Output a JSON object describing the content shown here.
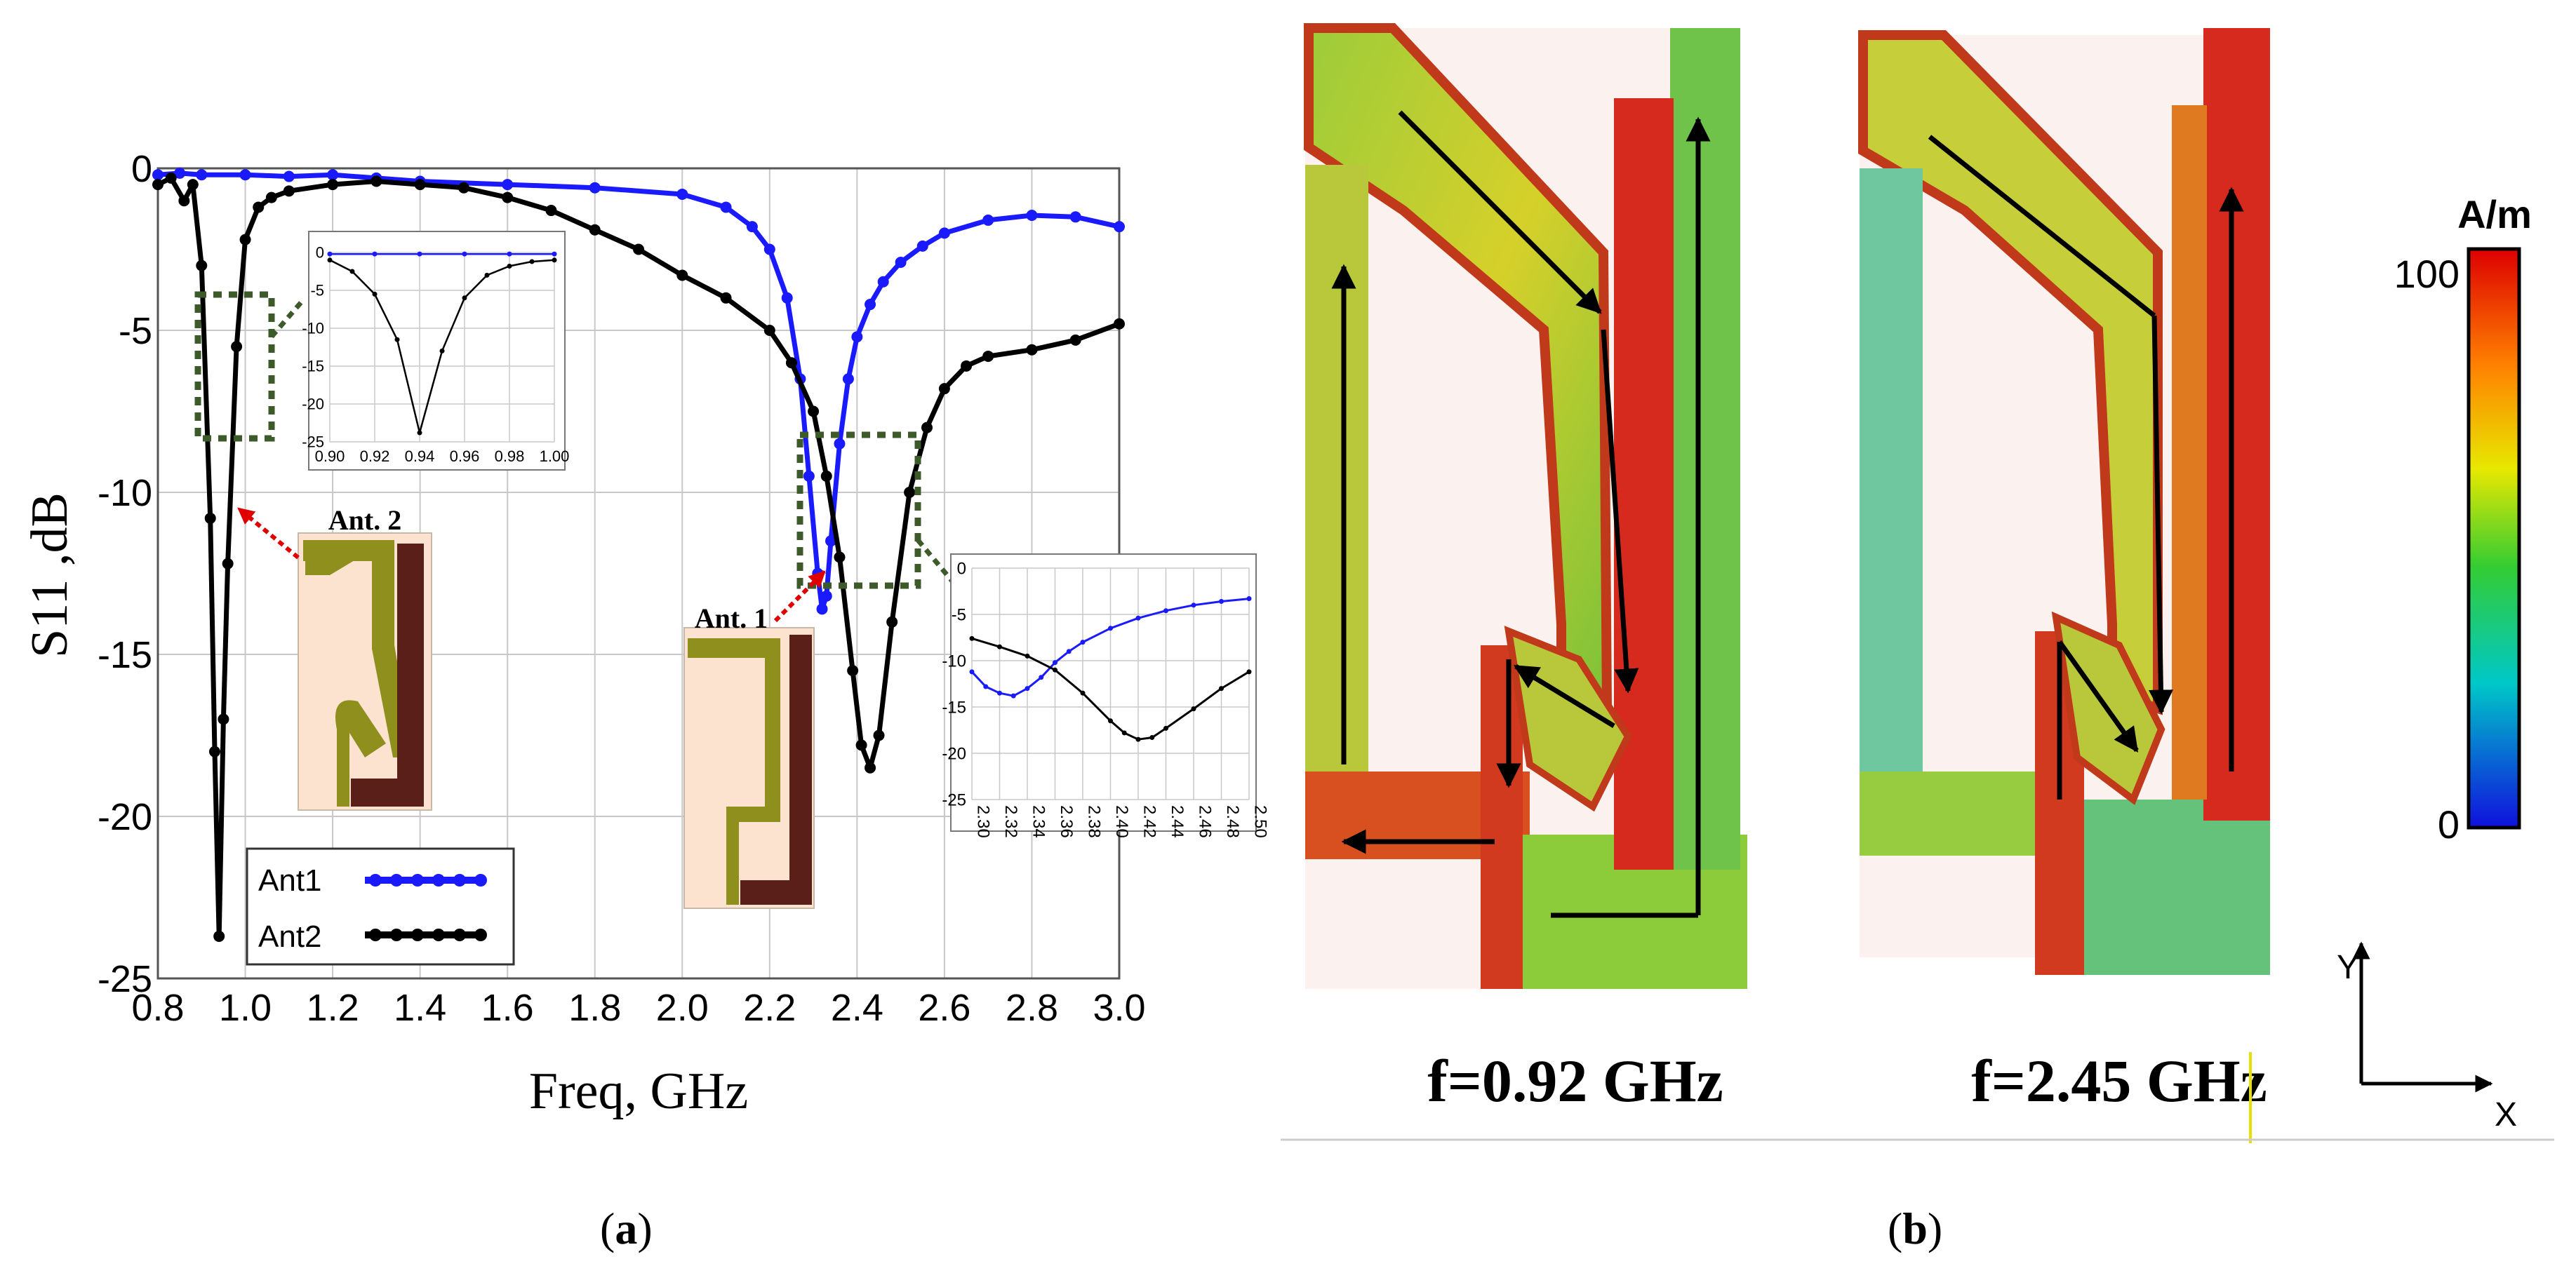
{
  "chart_data": [
    {
      "type": "line",
      "panel_label": "a",
      "xlabel": "Freq, GHz",
      "ylabel": "S11 ,dB",
      "xlim": [
        0.8,
        3.0
      ],
      "ylim": [
        -25,
        0
      ],
      "xticks": [
        "0.8",
        "1.0",
        "1.2",
        "1.4",
        "1.6",
        "1.8",
        "2.0",
        "2.2",
        "2.4",
        "2.6",
        "2.8",
        "3.0"
      ],
      "yticks": [
        "0",
        "-5",
        "-10",
        "-15",
        "-20",
        "-25"
      ],
      "grid": true,
      "legend_position": "bottom-left",
      "series": [
        {
          "name": "Ant1",
          "color": "#1a1aff",
          "x": [
            0.8,
            0.85,
            0.9,
            1.0,
            1.1,
            1.2,
            1.3,
            1.4,
            1.6,
            1.8,
            2.0,
            2.1,
            2.16,
            2.2,
            2.24,
            2.27,
            2.29,
            2.31,
            2.32,
            2.33,
            2.34,
            2.36,
            2.38,
            2.4,
            2.43,
            2.46,
            2.5,
            2.55,
            2.6,
            2.7,
            2.8,
            2.9,
            3.0
          ],
          "y": [
            -0.2,
            -0.15,
            -0.2,
            -0.2,
            -0.25,
            -0.2,
            -0.3,
            -0.4,
            -0.5,
            -0.6,
            -0.8,
            -1.2,
            -1.8,
            -2.5,
            -4.0,
            -6.5,
            -9.5,
            -12.5,
            -13.6,
            -13.2,
            -11.5,
            -8.5,
            -6.5,
            -5.2,
            -4.2,
            -3.5,
            -2.9,
            -2.4,
            -2.0,
            -1.6,
            -1.45,
            -1.5,
            -1.8
          ]
        },
        {
          "name": "Ant2",
          "color": "#000000",
          "x": [
            0.8,
            0.83,
            0.86,
            0.88,
            0.9,
            0.92,
            0.93,
            0.94,
            0.95,
            0.96,
            0.98,
            1.0,
            1.03,
            1.06,
            1.1,
            1.2,
            1.3,
            1.4,
            1.5,
            1.6,
            1.7,
            1.8,
            1.9,
            2.0,
            2.1,
            2.2,
            2.25,
            2.3,
            2.33,
            2.36,
            2.39,
            2.41,
            2.43,
            2.45,
            2.48,
            2.52,
            2.56,
            2.6,
            2.65,
            2.7,
            2.8,
            2.9,
            3.0
          ],
          "y": [
            -0.5,
            -0.3,
            -1.0,
            -0.5,
            -3.0,
            -10.8,
            -18.0,
            -23.7,
            -17.0,
            -12.2,
            -5.5,
            -2.2,
            -1.2,
            -0.9,
            -0.7,
            -0.5,
            -0.4,
            -0.5,
            -0.6,
            -0.9,
            -1.3,
            -1.9,
            -2.5,
            -3.3,
            -4.0,
            -5.0,
            -6.0,
            -7.5,
            -9.5,
            -12.0,
            -15.5,
            -17.8,
            -18.5,
            -17.5,
            -14.0,
            -10.0,
            -8.0,
            -6.8,
            -6.1,
            -5.8,
            -5.6,
            -5.3,
            -4.8
          ]
        }
      ],
      "inset_low": {
        "xlim": [
          0.9,
          1.0
        ],
        "ylim": [
          -25,
          0
        ],
        "xticks": [
          "0.90",
          "0.92",
          "0.94",
          "0.96",
          "0.98",
          "1.00"
        ],
        "yticks": [
          "0",
          "-5",
          "-10",
          "-15",
          "-20",
          "-25"
        ],
        "series": [
          {
            "name": "Ant1",
            "color": "#1a1aff",
            "x": [
              0.9,
              0.92,
              0.94,
              0.96,
              0.98,
              1.0
            ],
            "y": [
              -0.2,
              -0.2,
              -0.2,
              -0.2,
              -0.2,
              -0.2
            ]
          },
          {
            "name": "Ant2",
            "color": "#000000",
            "x": [
              0.9,
              0.91,
              0.92,
              0.93,
              0.94,
              0.95,
              0.96,
              0.97,
              0.98,
              0.99,
              1.0
            ],
            "y": [
              -1.0,
              -2.5,
              -5.5,
              -11.5,
              -23.8,
              -13.0,
              -6.0,
              -3.0,
              -1.8,
              -1.2,
              -1.0
            ]
          }
        ]
      },
      "inset_high": {
        "xlim": [
          2.3,
          2.5
        ],
        "ylim": [
          -25,
          0
        ],
        "xticks": [
          "2.30",
          "2.32",
          "2.34",
          "2.36",
          "2.38",
          "2.40",
          "2.42",
          "2.44",
          "2.46",
          "2.48",
          "2.50"
        ],
        "yticks": [
          "0",
          "-5",
          "-10",
          "-15",
          "-20",
          "-25"
        ],
        "series": [
          {
            "name": "Ant1",
            "color": "#1a1aff",
            "x": [
              2.3,
              2.31,
              2.32,
              2.33,
              2.34,
              2.35,
              2.36,
              2.37,
              2.38,
              2.4,
              2.42,
              2.44,
              2.46,
              2.48,
              2.5
            ],
            "y": [
              -11.2,
              -12.8,
              -13.5,
              -13.8,
              -13.0,
              -11.8,
              -10.2,
              -9.0,
              -8.0,
              -6.5,
              -5.4,
              -4.6,
              -4.0,
              -3.6,
              -3.3
            ]
          },
          {
            "name": "Ant2",
            "color": "#000000",
            "x": [
              2.3,
              2.32,
              2.34,
              2.36,
              2.38,
              2.4,
              2.41,
              2.42,
              2.43,
              2.44,
              2.46,
              2.48,
              2.5
            ],
            "y": [
              -7.6,
              -8.5,
              -9.5,
              -11.0,
              -13.5,
              -16.5,
              -17.8,
              -18.5,
              -18.3,
              -17.3,
              -15.2,
              -13.0,
              -11.2
            ]
          }
        ]
      },
      "annotations": [
        "Ant. 2",
        "Ant. 1"
      ]
    }
  ],
  "caption_a": "a",
  "caption_b": "b",
  "panel_b": {
    "freq_left": "f=0.92 GHz",
    "freq_right": "f=2.45 GHz",
    "colorbar_unit": "A/m",
    "colorbar_max": "100",
    "colorbar_min": "0",
    "axis_y": "Y",
    "axis_x": "X",
    "colors": [
      "#ff0000",
      "#ff7a00",
      "#d8e000",
      "#33cc33",
      "#00c8c8",
      "#1a1aff"
    ]
  }
}
